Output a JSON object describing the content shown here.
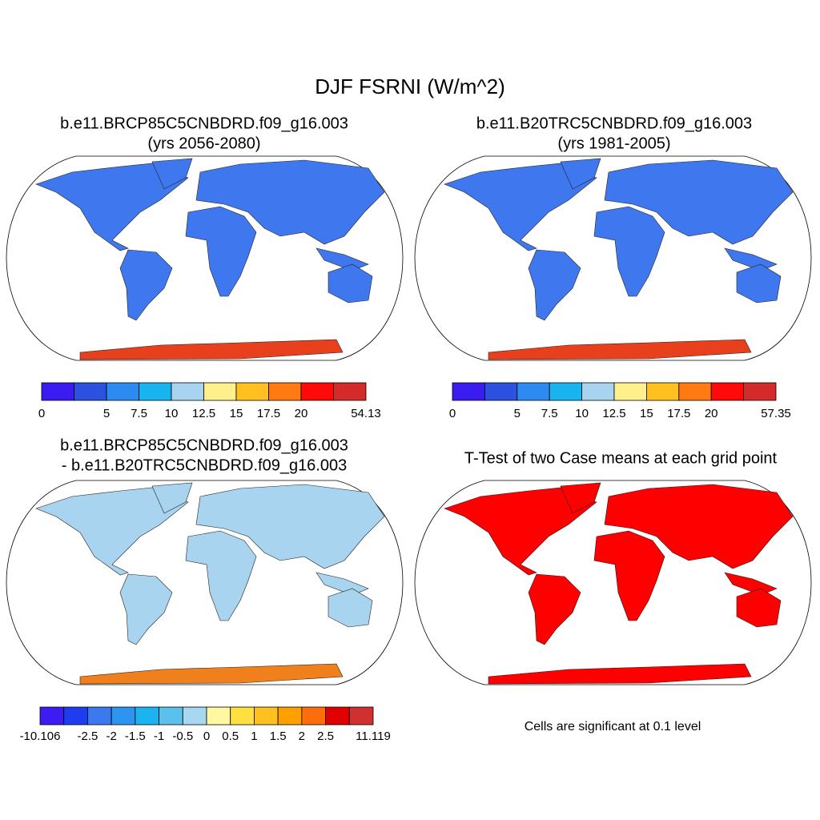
{
  "title": "DJF FSRNI (W/m^2)",
  "panels": [
    {
      "title": [
        "b.e11.BRCP85C5CNBDRD.f09_g16.003",
        "(yrs 2056-2080)"
      ],
      "colorbar": {
        "colors": [
          "#3a1cf0",
          "#2c50e0",
          "#2d8af0",
          "#18b4f0",
          "#a8d4f0",
          "#fff08c",
          "#ffc020",
          "#ff7a10",
          "#ff0a0a",
          "#d42a2a"
        ],
        "labels": [
          0,
          null,
          5,
          7.5,
          10,
          12.5,
          15,
          17.5,
          20,
          null,
          54.13
        ]
      }
    },
    {
      "title": [
        "b.e11.B20TRC5CNBDRD.f09_g16.003",
        "(yrs 1981-2005)"
      ],
      "colorbar": {
        "colors": [
          "#3a1cf0",
          "#2c50e0",
          "#2d8af0",
          "#18b4f0",
          "#a8d4f0",
          "#fff08c",
          "#ffc020",
          "#ff7a10",
          "#ff0a0a",
          "#d42a2a"
        ],
        "labels": [
          0,
          null,
          5,
          7.5,
          10,
          12.5,
          15,
          17.5,
          20,
          null,
          57.35
        ]
      }
    },
    {
      "title": [
        "b.e11.BRCP85C5CNBDRD.f09_g16.003",
        "- b.e11.B20TRC5CNBDRD.f09_g16.003"
      ],
      "colorbar": {
        "colors": [
          "#3c1cf0",
          "#1e3cf0",
          "#3c78f0",
          "#2d94f0",
          "#1cb4f0",
          "#5ac0ec",
          "#a8d8f0",
          "#fff8a0",
          "#ffe040",
          "#ffc020",
          "#ffa000",
          "#ff6e0a",
          "#e00000",
          "#d03030"
        ],
        "labels": [
          -10.106,
          null,
          -2.5,
          -2,
          -1.5,
          -1,
          -0.5,
          0,
          0.5,
          1,
          1.5,
          2,
          2.5,
          null,
          11.119
        ]
      }
    },
    {
      "title": [
        "T-Test of two Case means at each grid point"
      ],
      "note": "Cells are significant at 0.1 level"
    }
  ]
}
